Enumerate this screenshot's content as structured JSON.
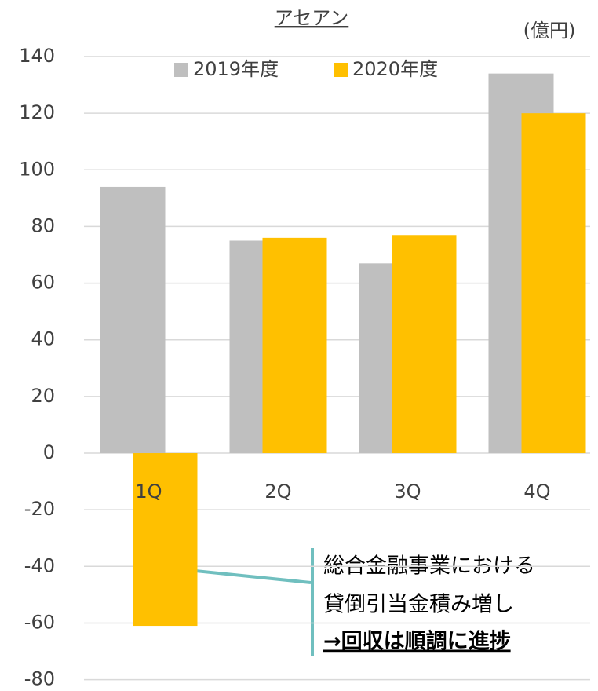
{
  "chart_data": {
    "type": "bar",
    "title": "アセアン",
    "unit_label": "(億円)",
    "categories": [
      "1Q",
      "2Q",
      "3Q",
      "4Q"
    ],
    "series": [
      {
        "name": "2019年度",
        "color": "#bfbfbf",
        "values": [
          94,
          75,
          67,
          134
        ]
      },
      {
        "name": "2020年度",
        "color": "#ffc000",
        "values": [
          -61,
          76,
          77,
          120
        ]
      }
    ],
    "ylim": [
      -80,
      140
    ],
    "yticks": [
      -80,
      -60,
      -40,
      -20,
      0,
      20,
      40,
      60,
      80,
      100,
      120,
      140
    ],
    "grid": true,
    "legend": "top",
    "annotation": [
      "総合金融事業における",
      "貸倒引当金積み増し",
      "→回収は順調に進捗"
    ]
  }
}
